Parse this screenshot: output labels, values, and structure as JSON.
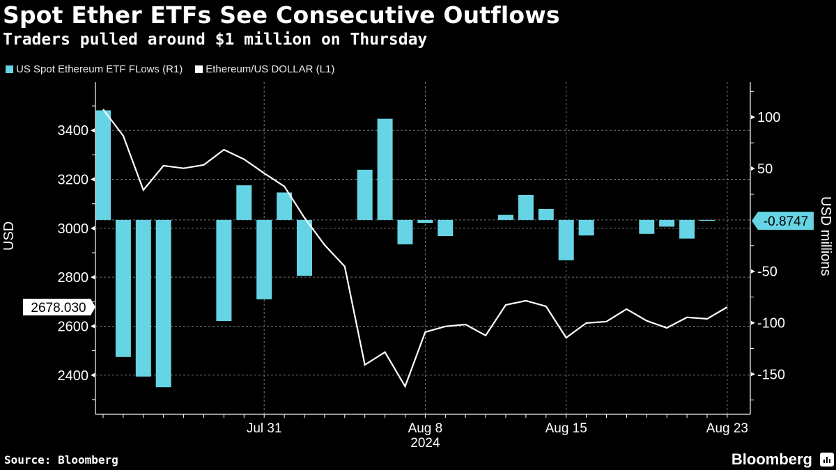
{
  "header": {
    "title": "Spot Ether ETFs See Consecutive Outflows",
    "subtitle": "Traders pulled around $1 million on Thursday"
  },
  "legend": [
    {
      "label": "US Spot Ethereum ETF FLows (R1)",
      "color": "#66d4e4"
    },
    {
      "label": "Ethereum/US DOLLAR (L1)",
      "color": "#ffffff"
    }
  ],
  "footer": {
    "source": "Source: Bloomberg",
    "brand": "Bloomberg"
  },
  "chart_data": {
    "type": "bar+line",
    "title": "Spot Ether ETFs See Consecutive Outflows",
    "subtitle": "Traders pulled around $1 million on Thursday",
    "x_dates": [
      "Jul 23",
      "Jul 24",
      "Jul 25",
      "Jul 26",
      "Jul 27",
      "Jul 28",
      "Jul 29",
      "Jul 30",
      "Jul 31",
      "Aug 1",
      "Aug 2",
      "Aug 3",
      "Aug 4",
      "Aug 5",
      "Aug 6",
      "Aug 7",
      "Aug 8",
      "Aug 9",
      "Aug 10",
      "Aug 11",
      "Aug 12",
      "Aug 13",
      "Aug 14",
      "Aug 15",
      "Aug 16",
      "Aug 17",
      "Aug 18",
      "Aug 19",
      "Aug 20",
      "Aug 21",
      "Aug 22",
      "Aug 23"
    ],
    "x_tick_labels": [
      {
        "date": "Jul 31",
        "label": "Jul 31"
      },
      {
        "date": "Aug 8",
        "label": "Aug 8"
      },
      {
        "date": "Aug 15",
        "label": "Aug 15"
      },
      {
        "date": "Aug 23",
        "label": "Aug 23"
      }
    ],
    "x_year_label": "2024",
    "left_axis": {
      "label": "USD",
      "range": [
        2240,
        3597
      ],
      "ticks": [
        2400,
        2600,
        2800,
        3000,
        3200,
        3400
      ]
    },
    "right_axis": {
      "label": "USD millions",
      "range": [
        -189,
        134
      ],
      "ticks": [
        -150,
        -100,
        -50,
        0,
        50,
        100
      ],
      "tick_labels": [
        "-150",
        "-100",
        "-50",
        "0",
        "50",
        "100"
      ]
    },
    "series": [
      {
        "name": "US Spot Ethereum ETF FLows (R1)",
        "type": "bar",
        "axis": "right",
        "color": "#66d4e4",
        "points": [
          {
            "date": "Jul 23",
            "value": 106.6
          },
          {
            "date": "Jul 24",
            "value": -133.3
          },
          {
            "date": "Jul 25",
            "value": -152.3
          },
          {
            "date": "Jul 26",
            "value": -162.7
          },
          {
            "date": "Jul 29",
            "value": -98.3
          },
          {
            "date": "Jul 30",
            "value": 33.7
          },
          {
            "date": "Jul 31",
            "value": -77.2
          },
          {
            "date": "Aug 1",
            "value": 26.7
          },
          {
            "date": "Aug 2",
            "value": -54.3
          },
          {
            "date": "Aug 5",
            "value": 48.8
          },
          {
            "date": "Aug 6",
            "value": 98.4
          },
          {
            "date": "Aug 7",
            "value": -23.7
          },
          {
            "date": "Aug 8",
            "value": -2.9
          },
          {
            "date": "Aug 9",
            "value": -15.7
          },
          {
            "date": "Aug 12",
            "value": 4.9
          },
          {
            "date": "Aug 13",
            "value": 24.3
          },
          {
            "date": "Aug 14",
            "value": 10.8
          },
          {
            "date": "Aug 15",
            "value": -39.2
          },
          {
            "date": "Aug 16",
            "value": -15.1
          },
          {
            "date": "Aug 19",
            "value": -13.5
          },
          {
            "date": "Aug 20",
            "value": -6.5
          },
          {
            "date": "Aug 21",
            "value": -18.1
          },
          {
            "date": "Aug 22",
            "value": -0.8747
          }
        ],
        "last_value_label": "-0.8747"
      },
      {
        "name": "Ethereum/US DOLLAR (L1)",
        "type": "line",
        "axis": "left",
        "color": "#ffffff",
        "points": [
          {
            "date": "Jul 23",
            "value": 3486
          },
          {
            "date": "Jul 24",
            "value": 3378
          },
          {
            "date": "Jul 25",
            "value": 3156
          },
          {
            "date": "Jul 26",
            "value": 3256
          },
          {
            "date": "Jul 27",
            "value": 3245
          },
          {
            "date": "Jul 28",
            "value": 3259
          },
          {
            "date": "Jul 29",
            "value": 3321
          },
          {
            "date": "Jul 30",
            "value": 3282
          },
          {
            "date": "Jul 31",
            "value": 3225
          },
          {
            "date": "Aug 1",
            "value": 3171
          },
          {
            "date": "Aug 2",
            "value": 3043
          },
          {
            "date": "Aug 3",
            "value": 2932
          },
          {
            "date": "Aug 4",
            "value": 2844
          },
          {
            "date": "Aug 5",
            "value": 2442
          },
          {
            "date": "Aug 6",
            "value": 2494
          },
          {
            "date": "Aug 7",
            "value": 2354
          },
          {
            "date": "Aug 8",
            "value": 2576
          },
          {
            "date": "Aug 9",
            "value": 2599
          },
          {
            "date": "Aug 10",
            "value": 2607
          },
          {
            "date": "Aug 11",
            "value": 2562
          },
          {
            "date": "Aug 12",
            "value": 2687
          },
          {
            "date": "Aug 13",
            "value": 2704
          },
          {
            "date": "Aug 14",
            "value": 2681
          },
          {
            "date": "Aug 15",
            "value": 2553
          },
          {
            "date": "Aug 16",
            "value": 2613
          },
          {
            "date": "Aug 17",
            "value": 2619
          },
          {
            "date": "Aug 18",
            "value": 2670
          },
          {
            "date": "Aug 19",
            "value": 2622
          },
          {
            "date": "Aug 20",
            "value": 2593
          },
          {
            "date": "Aug 21",
            "value": 2636
          },
          {
            "date": "Aug 22",
            "value": 2630
          },
          {
            "date": "Aug 23",
            "value": 2678.03
          }
        ],
        "last_value_label": "2678.030"
      }
    ],
    "grid": true,
    "legend_position": "top-left"
  }
}
